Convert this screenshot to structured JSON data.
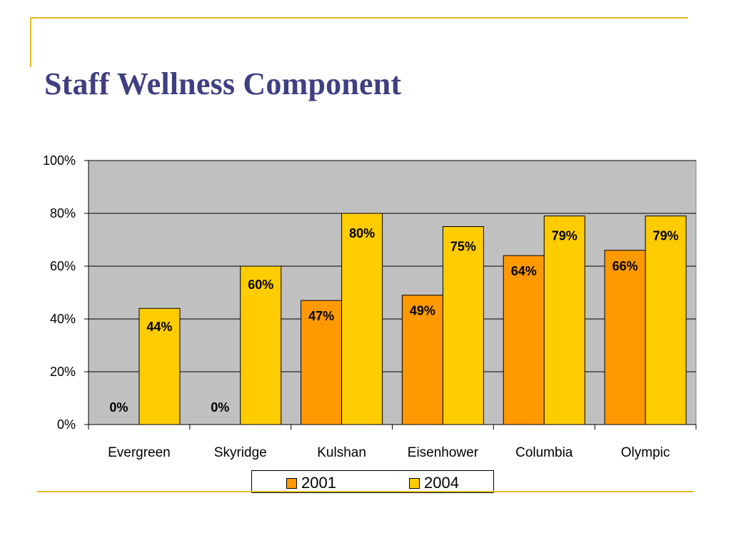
{
  "slide": {
    "title": "Staff Wellness Component"
  },
  "colors": {
    "accent_line": "#E8B923",
    "title": "#3F3F82",
    "plot_bg": "#C0C0C0",
    "series_2001": "#FF9900",
    "series_2004": "#FFCC00"
  },
  "chart_data": {
    "type": "bar",
    "title": "",
    "xlabel": "",
    "ylabel": "",
    "categories": [
      "Evergreen",
      "Skyridge",
      "Kulshan",
      "Eisenhower",
      "Columbia",
      "Olympic"
    ],
    "series": [
      {
        "name": "2001",
        "color": "#FF9900",
        "values": [
          0,
          0,
          47,
          49,
          64,
          66
        ],
        "labels": [
          "0%",
          "0%",
          "47%",
          "49%",
          "64%",
          "66%"
        ]
      },
      {
        "name": "2004",
        "color": "#FFCC00",
        "values": [
          44,
          60,
          80,
          75,
          79,
          79
        ],
        "labels": [
          "44%",
          "60%",
          "80%",
          "75%",
          "79%",
          "79%"
        ]
      }
    ],
    "ylim": [
      0,
      100
    ],
    "yticks": [
      0,
      20,
      40,
      60,
      80,
      100
    ],
    "ytick_labels": [
      "0%",
      "20%",
      "40%",
      "60%",
      "80%",
      "100%"
    ],
    "grid": true,
    "legend_position": "bottom"
  }
}
